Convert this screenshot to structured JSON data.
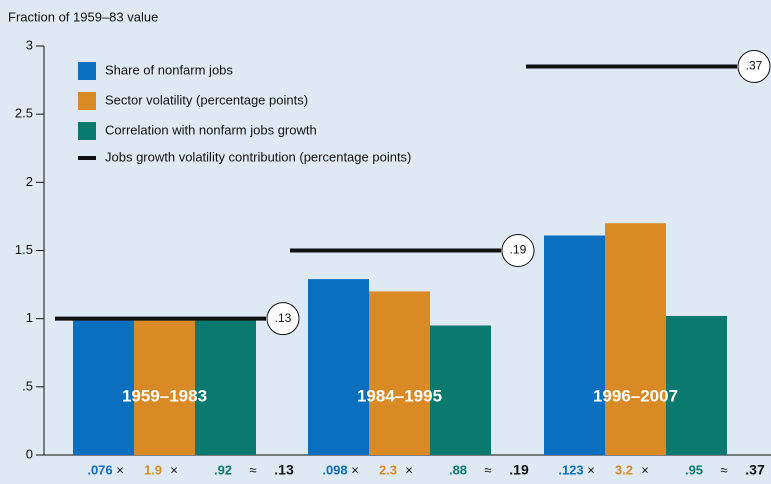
{
  "chart_data": {
    "type": "bar",
    "y_axis_label": "Fraction of 1959–83 value",
    "categories": [
      "1959–1983",
      "1984–1995",
      "1996–2007"
    ],
    "series": [
      {
        "name": "Share of nonfarm jobs",
        "color": "#0a6fbf",
        "values": [
          1,
          1.29,
          1.61
        ]
      },
      {
        "name": "Sector volatility (percentage points)",
        "color": "#d98a24",
        "values": [
          1,
          1.2,
          1.7
        ]
      },
      {
        "name": "Correlation with nonfarm jobs growth",
        "color": "#0b7a6e",
        "values": [
          1,
          0.95,
          1.02
        ]
      },
      {
        "name": "Jobs growth volatility contribution (percentage points)",
        "color": "#111111",
        "type": "line",
        "values": [
          1,
          1.5,
          2.85
        ]
      }
    ],
    "annotations": [
      ".13",
      ".19",
      ".37"
    ],
    "formulas": [
      {
        "share": ".076",
        "volatility": "1.9",
        "correlation": ".92",
        "result": ".13"
      },
      {
        "share": ".098",
        "volatility": "2.3",
        "correlation": ".88",
        "result": ".19"
      },
      {
        "share": ".123",
        "volatility": "3.2",
        "correlation": ".95",
        "result": ".37"
      }
    ],
    "times": "×",
    "approx": "≈",
    "ylim": [
      0,
      3
    ],
    "yticks": [
      0,
      {
        "value": 0.5,
        "label": ".5"
      },
      1,
      1.5,
      2,
      2.5,
      3
    ],
    "legend": "top-left"
  }
}
